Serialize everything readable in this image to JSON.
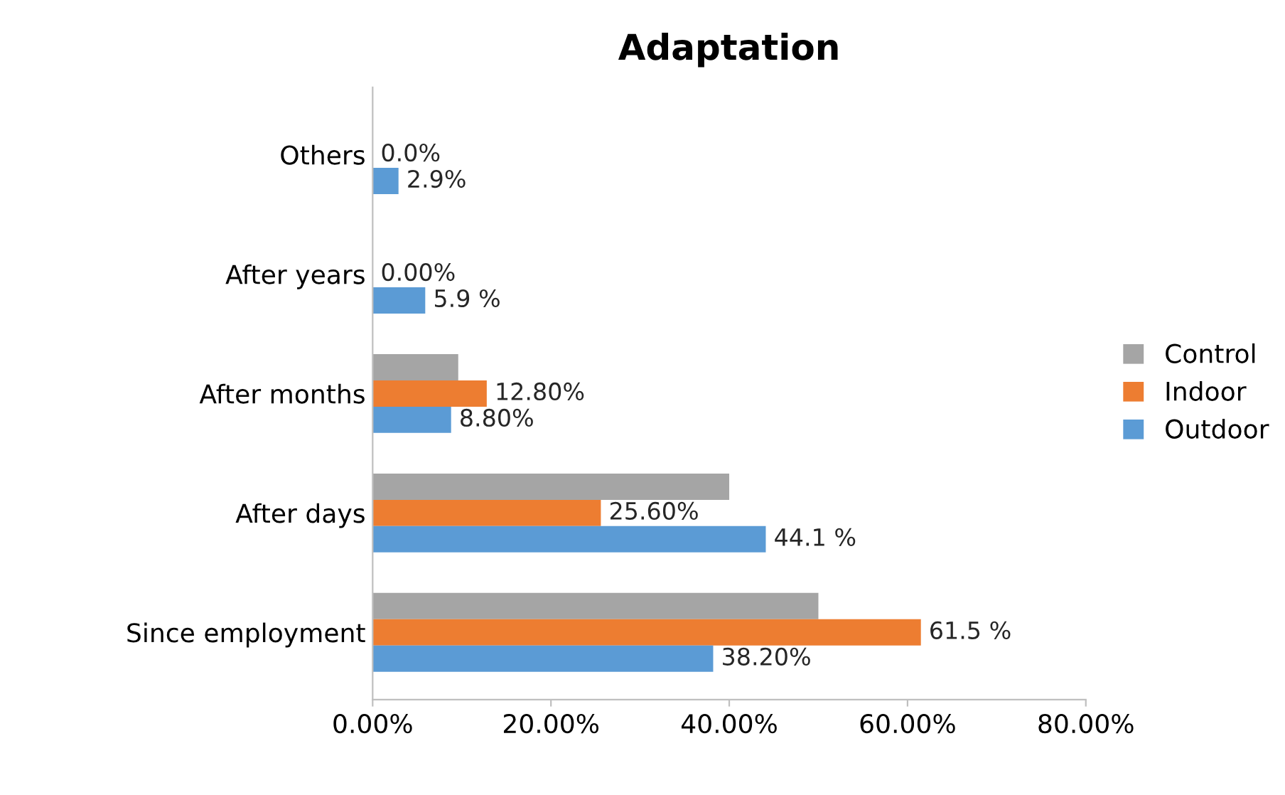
{
  "chart_data": {
    "type": "bar",
    "orientation": "horizontal",
    "title": "Adaptation",
    "categories": [
      "Others",
      "After years",
      "After months",
      "After days",
      "Since employment"
    ],
    "series": [
      {
        "name": "Control",
        "color": "#a5a5a5",
        "values": [
          0,
          0,
          9.6,
          40,
          50
        ]
      },
      {
        "name": "Indoor",
        "color": "#ed7d31",
        "values": [
          0.0,
          0.0,
          12.8,
          25.6,
          61.5
        ],
        "value_labels": [
          "0.0%",
          "0.00%",
          "12.80%",
          "25.60%",
          "61.5 %"
        ]
      },
      {
        "name": "Outdoor",
        "color": "#5b9bd5",
        "values": [
          2.9,
          5.9,
          8.8,
          44.1,
          38.2
        ],
        "value_labels": [
          "2.9%",
          "5.9 %",
          "8.80%",
          "44.1 %",
          "38.20%"
        ]
      }
    ],
    "xlim": [
      0,
      80
    ],
    "xticks": [
      {
        "value": 0,
        "label": "0.00%"
      },
      {
        "value": 20,
        "label": "20.00%"
      },
      {
        "value": 40,
        "label": "40.00%"
      },
      {
        "value": 60,
        "label": "60.00%"
      },
      {
        "value": 80,
        "label": "80.00%"
      }
    ],
    "legend": "right",
    "grid": false
  }
}
